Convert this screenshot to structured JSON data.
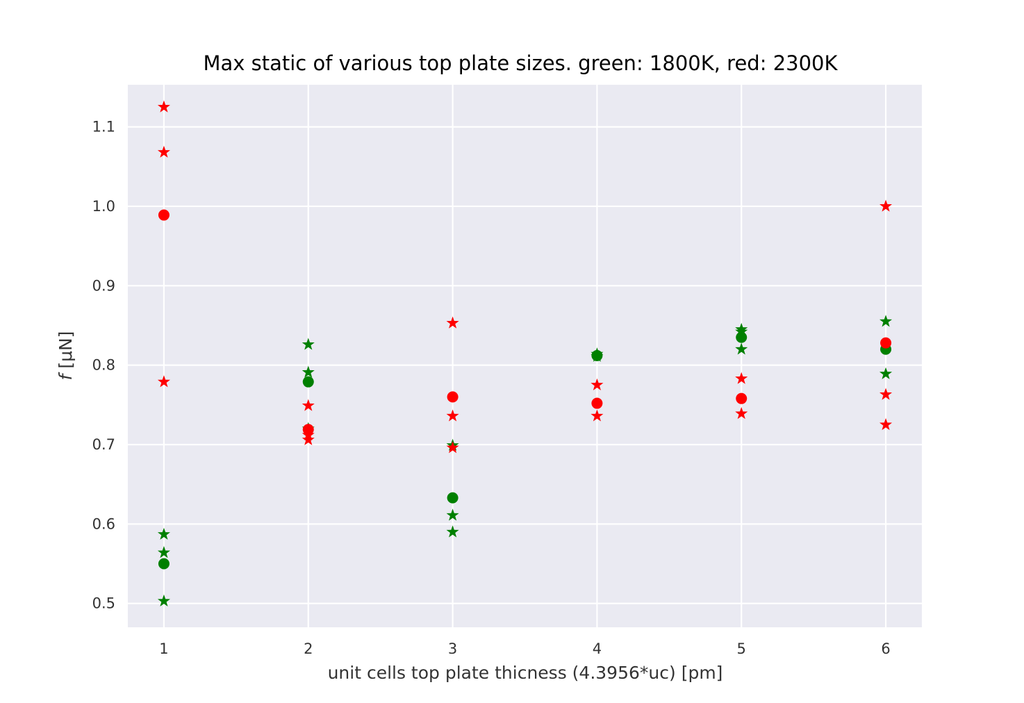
{
  "chart_data": {
    "type": "scatter",
    "title": "Max static of various top plate sizes. green: 1800K, red: 2300K",
    "xlabel": "unit cells top plate thicness (4.3956*uc) [pm]",
    "ylabel_italic": "f",
    "ylabel_rest": " [μN]",
    "xlim": [
      0.75,
      6.25
    ],
    "ylim": [
      0.47,
      1.153
    ],
    "x_ticks": [
      1,
      2,
      3,
      4,
      5,
      6
    ],
    "y_ticks": [
      0.5,
      0.6,
      0.7,
      0.8,
      0.9,
      1.0,
      1.1
    ],
    "x_tick_labels": [
      "1",
      "2",
      "3",
      "4",
      "5",
      "6"
    ],
    "y_tick_labels": [
      "0.5",
      "0.6",
      "0.7",
      "0.8",
      "0.9",
      "1.0",
      "1.1"
    ],
    "grid": true,
    "background": "#eaeaf2",
    "series": [
      {
        "color": "#008000",
        "marker": "star",
        "points": [
          [
            1,
            0.587
          ],
          [
            1,
            0.564
          ],
          [
            1,
            0.503
          ],
          [
            2,
            0.826
          ],
          [
            2,
            0.791
          ],
          [
            2,
            0.72
          ],
          [
            3,
            0.699
          ],
          [
            3,
            0.611
          ],
          [
            3,
            0.59
          ],
          [
            4,
            0.814
          ],
          [
            4,
            0.811
          ],
          [
            5,
            0.845
          ],
          [
            5,
            0.842
          ],
          [
            5,
            0.82
          ],
          [
            6,
            0.855
          ],
          [
            6,
            0.789
          ]
        ]
      },
      {
        "color": "#008000",
        "marker": "circle",
        "points": [
          [
            1,
            0.55
          ],
          [
            2,
            0.779
          ],
          [
            3,
            0.633
          ],
          [
            4,
            0.812
          ],
          [
            5,
            0.835
          ],
          [
            6,
            0.82
          ]
        ]
      },
      {
        "color": "#ff0000",
        "marker": "star",
        "points": [
          [
            1,
            1.125
          ],
          [
            1,
            1.068
          ],
          [
            1,
            0.779
          ],
          [
            2,
            0.749
          ],
          [
            2,
            0.712
          ],
          [
            2,
            0.706
          ],
          [
            3,
            0.853
          ],
          [
            3,
            0.736
          ],
          [
            3,
            0.696
          ],
          [
            4,
            0.775
          ],
          [
            4,
            0.736
          ],
          [
            5,
            0.783
          ],
          [
            5,
            0.739
          ],
          [
            6,
            1.0
          ],
          [
            6,
            0.763
          ],
          [
            6,
            0.725
          ]
        ]
      },
      {
        "color": "#ff0000",
        "marker": "circle",
        "points": [
          [
            1,
            0.989
          ],
          [
            2,
            0.719
          ],
          [
            3,
            0.76
          ],
          [
            4,
            0.752
          ],
          [
            5,
            0.758
          ],
          [
            6,
            0.828
          ]
        ]
      }
    ]
  }
}
